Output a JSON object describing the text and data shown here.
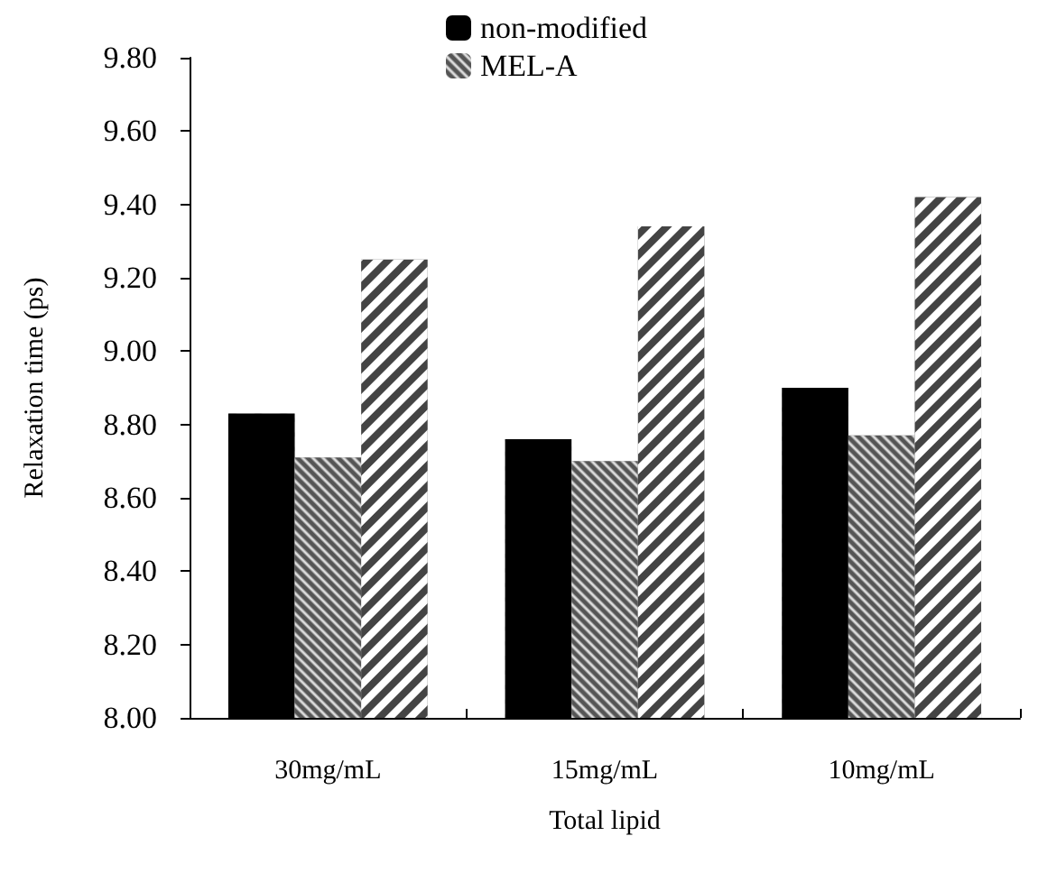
{
  "chart_data": {
    "type": "bar",
    "xlabel": "Total lipid",
    "ylabel": "Relaxation time (ps)",
    "categories": [
      "30mg/mL",
      "15mg/mL",
      "10mg/mL"
    ],
    "series": [
      {
        "name": "non-modified",
        "color": "#000000",
        "values": [
          8.83,
          8.76,
          8.9
        ]
      },
      {
        "name": "MEL-A",
        "color": "#555555",
        "values": [
          8.71,
          8.7,
          8.77
        ]
      },
      {
        "color": "#444444",
        "values": [
          9.25,
          9.34,
          9.42
        ]
      }
    ],
    "ylim": [
      8.0,
      9.8
    ],
    "yticks": [
      {
        "value": 8.0,
        "label": "8.00"
      },
      {
        "value": 8.2,
        "label": "8.20"
      },
      {
        "value": 8.4,
        "label": "8.40"
      },
      {
        "value": 8.6,
        "label": "8.60"
      },
      {
        "value": 8.8,
        "label": "8.80"
      },
      {
        "value": 9.0,
        "label": "9.00"
      },
      {
        "value": 9.2,
        "label": "9.20"
      },
      {
        "value": 9.4,
        "label": "9.40"
      },
      {
        "value": 9.6,
        "label": "9.60"
      },
      {
        "value": 9.8,
        "label": "9.80"
      }
    ],
    "grid": false,
    "legend": "top"
  }
}
